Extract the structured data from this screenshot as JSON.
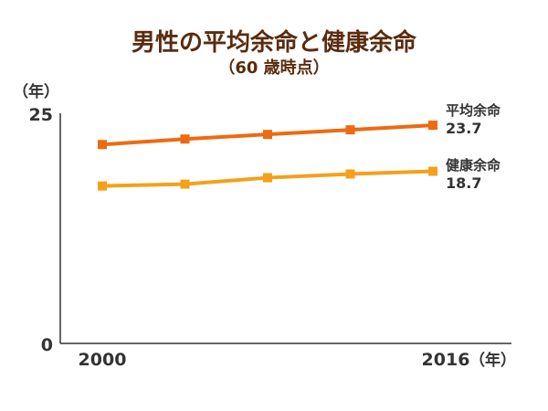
{
  "title": "男性の平均余命と健康余命",
  "subtitle": "（60 歳時点）",
  "colors": {
    "series_1": "#ee6a10",
    "series_2": "#f5a01a",
    "axis": "#333333",
    "title": "#5a2b0e"
  },
  "chart_data": {
    "type": "line",
    "x": [
      2000,
      2004,
      2008,
      2012,
      2016
    ],
    "x_tick_labels": [
      "2000",
      "2016"
    ],
    "xlabel": "（年）",
    "ylabel": "（年）",
    "ylim": [
      0,
      25
    ],
    "y_tick_labels": [
      "25",
      "0"
    ],
    "grid": false,
    "series": [
      {
        "name": "平均余命",
        "values": [
          21.6,
          22.2,
          22.7,
          23.2,
          23.7
        ],
        "end_label": "23.7"
      },
      {
        "name": "健康余命",
        "values": [
          17.1,
          17.3,
          18.0,
          18.4,
          18.7
        ],
        "end_label": "18.7"
      }
    ]
  }
}
